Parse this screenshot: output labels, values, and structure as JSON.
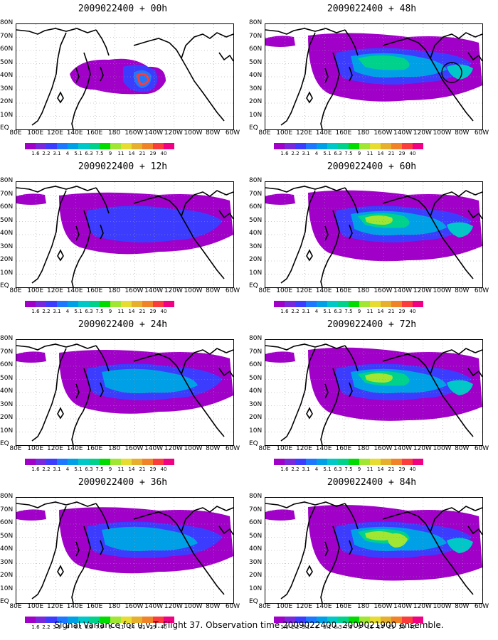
{
  "panels": [
    {
      "title": "2009022400 + 00h",
      "col": 0,
      "row": 0,
      "level": 0
    },
    {
      "title": "2009022400 + 12h",
      "col": 0,
      "row": 1,
      "level": 1
    },
    {
      "title": "2009022400 + 24h",
      "col": 0,
      "row": 2,
      "level": 2
    },
    {
      "title": "2009022400 + 36h",
      "col": 0,
      "row": 3,
      "level": 3
    },
    {
      "title": "2009022400 + 48h",
      "col": 1,
      "row": 0,
      "level": 4
    },
    {
      "title": "2009022400 + 60h",
      "col": 1,
      "row": 1,
      "level": 5
    },
    {
      "title": "2009022400 + 72h",
      "col": 1,
      "row": 2,
      "level": 6
    },
    {
      "title": "2009022400 + 84h",
      "col": 1,
      "row": 3,
      "level": 7
    }
  ],
  "lat_labels": [
    "80N",
    "70N",
    "60N",
    "50N",
    "40N",
    "30N",
    "20N",
    "10N",
    "EQ"
  ],
  "lon_labels": [
    "80E",
    "100E",
    "120E",
    "140E",
    "160E",
    "180",
    "160W",
    "140W",
    "120W",
    "100W",
    "80W",
    "60W"
  ],
  "colorbar": {
    "labels": [
      "1.6",
      "2.2",
      "3.1",
      "4",
      "5.1",
      "6.3",
      "7.5",
      "9",
      "11",
      "14",
      "21",
      "29",
      "40"
    ],
    "colors": [
      "#a000c8",
      "#7a28dc",
      "#3c3cff",
      "#1e78ff",
      "#00a0e6",
      "#00c8c8",
      "#00d28c",
      "#00dc00",
      "#a0e632",
      "#e6dc32",
      "#e6af2d",
      "#f08228",
      "#fa3c3c",
      "#f00082"
    ]
  },
  "footer": "Signal Variance for u,v,T. Flight 37. Observation time 2009022400. 2009021900 ensemble."
}
